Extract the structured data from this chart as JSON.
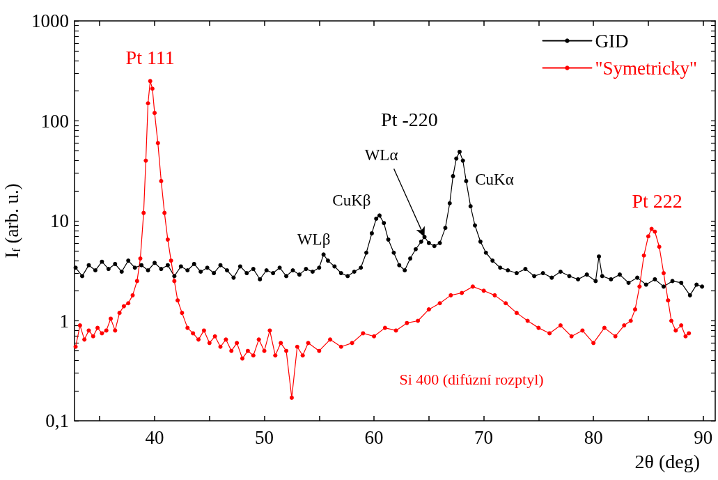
{
  "chart_data": {
    "type": "line",
    "xlabel": "2θ (deg)",
    "ylabel": "I$_{f}$ (arb. u.)",
    "xlim": [
      32.7,
      91.1
    ],
    "xticks": [
      {
        "value": 35,
        "label": null
      },
      40,
      {
        "value": 45,
        "label": null
      },
      50,
      {
        "value": 55,
        "label": null
      },
      60,
      {
        "value": 65,
        "label": null
      },
      70,
      {
        "value": 75,
        "label": null
      },
      80,
      {
        "value": 85,
        "label": null
      },
      90
    ],
    "ylim": [
      0.1,
      1000
    ],
    "log": true,
    "yticks": [
      {
        "value": 0.1,
        "label": "0,1"
      },
      {
        "value": 0.2,
        "label": null
      },
      {
        "value": 0.3,
        "label": null
      },
      {
        "value": 0.4,
        "label": null
      },
      {
        "value": 0.5,
        "label": null
      },
      {
        "value": 0.6,
        "label": null
      },
      {
        "value": 0.7,
        "label": null
      },
      {
        "value": 0.8,
        "label": null
      },
      {
        "value": 0.9,
        "label": null
      },
      1,
      {
        "value": 2,
        "label": null
      },
      {
        "value": 3,
        "label": null
      },
      {
        "value": 4,
        "label": null
      },
      {
        "value": 5,
        "label": null
      },
      {
        "value": 6,
        "label": null
      },
      {
        "value": 7,
        "label": null
      },
      {
        "value": 8,
        "label": null
      },
      {
        "value": 9,
        "label": null
      },
      10,
      {
        "value": 20,
        "label": null
      },
      {
        "value": 30,
        "label": null
      },
      {
        "value": 40,
        "label": null
      },
      {
        "value": 50,
        "label": null
      },
      {
        "value": 60,
        "label": null
      },
      {
        "value": 70,
        "label": null
      },
      {
        "value": 80,
        "label": null
      },
      {
        "value": 90,
        "label": null
      },
      100,
      {
        "value": 200,
        "label": null
      },
      {
        "value": 300,
        "label": null
      },
      {
        "value": 400,
        "label": null
      },
      {
        "value": 500,
        "label": null
      },
      {
        "value": 600,
        "label": null
      },
      {
        "value": 700,
        "label": null
      },
      {
        "value": 800,
        "label": null
      },
      {
        "value": 900,
        "label": null
      },
      1000
    ],
    "grid": false,
    "legend": "top right",
    "marker": "circle",
    "line_style": "solid",
    "series": [
      {
        "name": "GID",
        "color": "#000000",
        "x": [
          32.8,
          33.4,
          34.0,
          34.6,
          35.2,
          35.8,
          36.4,
          37.0,
          37.6,
          38.2,
          38.8,
          39.4,
          40.0,
          40.6,
          41.2,
          41.8,
          42.4,
          43.0,
          43.6,
          44.2,
          44.8,
          45.4,
          46.0,
          46.6,
          47.2,
          47.8,
          48.4,
          49.0,
          49.6,
          50.2,
          50.8,
          51.4,
          52.0,
          52.6,
          53.2,
          53.8,
          54.4,
          55.0,
          55.4,
          55.8,
          56.4,
          57.0,
          57.6,
          58.2,
          58.8,
          59.3,
          59.8,
          60.2,
          60.5,
          60.9,
          61.3,
          61.8,
          62.3,
          62.8,
          63.3,
          63.8,
          64.3,
          64.6,
          65.0,
          65.5,
          66.0,
          66.5,
          66.9,
          67.2,
          67.5,
          67.8,
          68.1,
          68.4,
          68.8,
          69.2,
          69.7,
          70.2,
          70.8,
          71.5,
          72.2,
          73.0,
          73.8,
          74.6,
          75.4,
          76.2,
          77.0,
          77.8,
          78.6,
          79.4,
          80.2,
          80.5,
          80.8,
          81.6,
          82.4,
          83.2,
          84.0,
          84.8,
          85.6,
          86.4,
          87.2,
          88.0,
          88.8,
          89.4,
          89.9
        ],
        "values": [
          3.4,
          2.8,
          3.6,
          3.2,
          3.9,
          3.3,
          3.7,
          3.1,
          4.0,
          3.4,
          3.6,
          3.2,
          3.8,
          3.3,
          3.6,
          2.8,
          3.5,
          3.2,
          3.7,
          3.1,
          3.4,
          3.0,
          3.6,
          3.2,
          2.7,
          3.5,
          3.0,
          3.3,
          2.6,
          3.2,
          3.0,
          3.4,
          2.8,
          3.2,
          2.9,
          3.3,
          3.1,
          3.4,
          4.6,
          4.0,
          3.5,
          3.0,
          2.8,
          3.1,
          3.4,
          4.8,
          7.5,
          10.5,
          11.3,
          9.5,
          6.5,
          4.8,
          3.6,
          3.2,
          4.2,
          5.2,
          6.2,
          6.9,
          6.0,
          5.6,
          6.0,
          8.5,
          15,
          28,
          42,
          49,
          40,
          25,
          14,
          9.0,
          6.2,
          4.8,
          4.0,
          3.4,
          3.2,
          3.0,
          3.3,
          2.8,
          3.0,
          2.7,
          3.1,
          2.8,
          2.6,
          2.9,
          2.5,
          4.4,
          2.8,
          2.6,
          2.9,
          2.4,
          2.7,
          2.3,
          2.6,
          2.2,
          2.5,
          2.4,
          1.8,
          2.3,
          2.2
        ]
      },
      {
        "name": "\"Symetricky\"",
        "color": "#ff0000",
        "x": [
          32.8,
          33.2,
          33.6,
          34.0,
          34.4,
          34.8,
          35.2,
          35.6,
          36.0,
          36.4,
          36.8,
          37.2,
          37.6,
          38.0,
          38.4,
          38.7,
          39.0,
          39.2,
          39.4,
          39.6,
          39.8,
          40.0,
          40.3,
          40.6,
          40.9,
          41.2,
          41.5,
          41.8,
          42.1,
          42.5,
          43.0,
          43.5,
          44.0,
          44.5,
          45.0,
          45.5,
          46.0,
          46.5,
          47.0,
          47.5,
          48.0,
          48.5,
          49.0,
          49.5,
          50.0,
          50.5,
          51.0,
          51.5,
          52.0,
          52.5,
          53.0,
          53.5,
          54.0,
          55.0,
          56.0,
          57.0,
          58.0,
          59.0,
          60.0,
          61.0,
          62.0,
          63.0,
          64.0,
          65.0,
          66.0,
          67.0,
          68.0,
          69.0,
          70.0,
          71.0,
          72.0,
          73.0,
          74.0,
          75.0,
          76.0,
          77.0,
          78.0,
          79.0,
          80.0,
          81.0,
          82.0,
          82.8,
          83.4,
          83.8,
          84.2,
          84.6,
          85.0,
          85.3,
          85.6,
          86.0,
          86.4,
          86.8,
          87.1,
          87.5,
          88.0,
          88.4,
          88.7
        ],
        "values": [
          0.55,
          0.9,
          0.65,
          0.8,
          0.7,
          0.85,
          0.75,
          0.8,
          1.05,
          0.8,
          1.2,
          1.4,
          1.5,
          1.8,
          2.5,
          4.2,
          12,
          40,
          150,
          250,
          210,
          120,
          60,
          25,
          12,
          6.5,
          4.0,
          2.5,
          1.6,
          1.2,
          0.85,
          0.75,
          0.65,
          0.8,
          0.6,
          0.7,
          0.55,
          0.65,
          0.5,
          0.6,
          0.42,
          0.5,
          0.45,
          0.65,
          0.5,
          0.8,
          0.45,
          0.6,
          0.5,
          0.17,
          0.55,
          0.45,
          0.6,
          0.5,
          0.65,
          0.55,
          0.6,
          0.75,
          0.7,
          0.85,
          0.8,
          0.95,
          1.0,
          1.3,
          1.5,
          1.8,
          1.9,
          2.2,
          2.0,
          1.8,
          1.5,
          1.2,
          1.0,
          0.85,
          0.75,
          0.9,
          0.7,
          0.8,
          0.6,
          0.85,
          0.7,
          0.9,
          1.0,
          1.3,
          2.2,
          4.5,
          7.0,
          8.3,
          7.8,
          5.5,
          3.0,
          1.6,
          1.0,
          0.8,
          0.9,
          0.7,
          0.75
        ]
      }
    ],
    "annotations": [
      {
        "text": "Pt 111",
        "x": 39.6,
        "y": 250
      },
      {
        "text": "WLβ",
        "x": 55.4,
        "y": 4.6
      },
      {
        "text": "CuKβ",
        "x": 60.5,
        "y": 11.3
      },
      {
        "text": "WLα",
        "x": 64.6,
        "y": 6.9
      },
      {
        "text": "Pt -220",
        "x": 67.8,
        "y": 49
      },
      {
        "text": "CuKα",
        "x": 67.8,
        "y": 49
      },
      {
        "text": "Pt 222",
        "x": 85.3,
        "y": 8.3
      },
      "Si 400 (difúzní rozptyl)"
    ]
  }
}
